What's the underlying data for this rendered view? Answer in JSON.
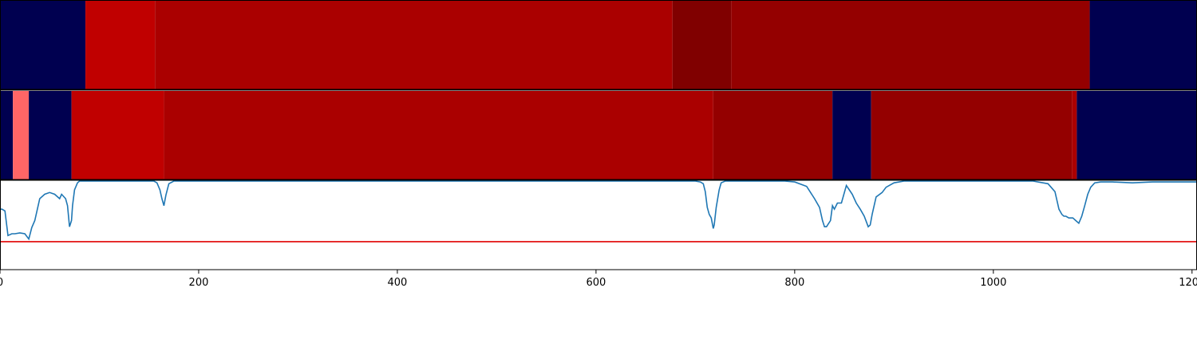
{
  "chart_data": {
    "type": "heatmap",
    "title": "",
    "xlabel": "",
    "ylabel": "",
    "xlim": [
      0,
      1205
    ],
    "x_ticks": [
      0,
      200,
      400,
      600,
      800,
      1000,
      1200
    ],
    "x_tick_labels": [
      "0",
      "200",
      "400",
      "600",
      "800",
      "1000",
      "1200"
    ],
    "grid": false,
    "legend": "none",
    "segment_tracks": [
      {
        "segments": [
          {
            "start": 0,
            "end": 86,
            "color": "#000050"
          },
          {
            "start": 86,
            "end": 156,
            "color": "#c00000"
          },
          {
            "start": 156,
            "end": 677,
            "color": "#aa0000"
          },
          {
            "start": 677,
            "end": 736,
            "color": "#800000"
          },
          {
            "start": 736,
            "end": 1097,
            "color": "#940000"
          },
          {
            "start": 1097,
            "end": 1205,
            "color": "#000050"
          }
        ]
      },
      {
        "segments": [
          {
            "start": 0,
            "end": 13,
            "color": "#000050"
          },
          {
            "start": 13,
            "end": 29,
            "color": "#ff6666"
          },
          {
            "start": 29,
            "end": 72,
            "color": "#000050"
          },
          {
            "start": 72,
            "end": 165,
            "color": "#c00000"
          },
          {
            "start": 165,
            "end": 718,
            "color": "#aa0000"
          },
          {
            "start": 718,
            "end": 838,
            "color": "#940000"
          },
          {
            "start": 838,
            "end": 877,
            "color": "#000050"
          },
          {
            "start": 877,
            "end": 1079,
            "color": "#940000"
          },
          {
            "start": 1079,
            "end": 1084,
            "color": "#aa0000"
          },
          {
            "start": 1084,
            "end": 1205,
            "color": "#000050"
          }
        ]
      }
    ],
    "line_panel": {
      "ylim": [
        0,
        1
      ],
      "threshold": {
        "value": 0.31,
        "color": "#e00000"
      },
      "series": [
        {
          "color": "#1f77b4",
          "x": [
            0,
            2,
            5,
            8,
            12,
            15,
            20,
            25,
            29,
            32,
            35,
            40,
            45,
            50,
            55,
            60,
            62,
            66,
            68,
            70,
            72,
            73,
            75,
            78,
            80,
            84,
            88,
            90,
            155,
            158,
            161,
            163,
            165,
            167,
            170,
            175,
            180,
            700,
            705,
            708,
            710,
            712,
            714,
            716,
            718,
            719,
            721,
            724,
            726,
            730,
            735,
            740,
            750,
            790,
            800,
            812,
            820,
            825,
            828,
            830,
            832,
            836,
            838,
            840,
            843,
            847,
            852,
            855,
            858,
            862,
            866,
            870,
            874,
            876,
            878,
            882,
            888,
            892,
            900,
            910,
            930,
            950,
            1040,
            1055,
            1062,
            1066,
            1069,
            1071,
            1073,
            1076,
            1080,
            1083,
            1086,
            1089,
            1092,
            1095,
            1098,
            1102,
            1108,
            1120,
            1140,
            1160,
            1205
          ],
          "y": [
            0.68,
            0.68,
            0.66,
            0.38,
            0.4,
            0.4,
            0.41,
            0.4,
            0.34,
            0.47,
            0.55,
            0.8,
            0.85,
            0.87,
            0.85,
            0.8,
            0.85,
            0.8,
            0.72,
            0.48,
            0.55,
            0.72,
            0.9,
            0.98,
            1.0,
            1.0,
            1.0,
            1.0,
            1.0,
            0.98,
            0.9,
            0.8,
            0.72,
            0.84,
            0.97,
            1.0,
            1.0,
            1.0,
            0.99,
            0.97,
            0.88,
            0.7,
            0.62,
            0.58,
            0.46,
            0.5,
            0.7,
            0.9,
            0.98,
            1.0,
            1.0,
            1.0,
            1.0,
            1.0,
            0.99,
            0.94,
            0.8,
            0.7,
            0.55,
            0.48,
            0.48,
            0.55,
            0.72,
            0.68,
            0.75,
            0.75,
            0.95,
            0.9,
            0.85,
            0.75,
            0.68,
            0.6,
            0.48,
            0.5,
            0.62,
            0.82,
            0.87,
            0.93,
            0.98,
            1.0,
            1.0,
            1.0,
            1.0,
            0.97,
            0.88,
            0.68,
            0.62,
            0.6,
            0.6,
            0.58,
            0.58,
            0.55,
            0.52,
            0.6,
            0.72,
            0.85,
            0.93,
            0.98,
            0.99,
            0.99,
            0.98,
            0.99,
            0.99
          ]
        }
      ]
    }
  }
}
